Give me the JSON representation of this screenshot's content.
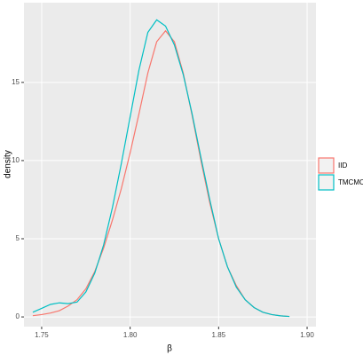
{
  "chart_data": {
    "type": "line",
    "x_label": "β",
    "y_label": "density",
    "x": [
      1.745,
      1.75,
      1.755,
      1.76,
      1.765,
      1.77,
      1.775,
      1.78,
      1.785,
      1.79,
      1.795,
      1.8,
      1.805,
      1.81,
      1.815,
      1.82,
      1.825,
      1.83,
      1.835,
      1.84,
      1.845,
      1.85,
      1.855,
      1.86,
      1.865,
      1.87,
      1.875,
      1.88,
      1.885,
      1.89
    ],
    "series": [
      {
        "name": "IID",
        "color": "#F8766D",
        "values": [
          0.08,
          0.15,
          0.25,
          0.4,
          0.7,
          1.1,
          1.8,
          2.9,
          4.4,
          6.2,
          8.2,
          10.5,
          13.0,
          15.6,
          17.6,
          18.3,
          17.6,
          15.6,
          12.9,
          10.0,
          7.3,
          5.0,
          3.2,
          2.0,
          1.1,
          0.6,
          0.3,
          0.15,
          0.07,
          0.03
        ]
      },
      {
        "name": "TMCMC",
        "color": "#00BFC4",
        "values": [
          0.3,
          0.55,
          0.8,
          0.9,
          0.85,
          0.95,
          1.6,
          2.8,
          4.6,
          7.0,
          9.8,
          12.8,
          15.8,
          18.2,
          19.0,
          18.6,
          17.4,
          15.5,
          13.0,
          10.2,
          7.5,
          5.0,
          3.2,
          1.9,
          1.1,
          0.6,
          0.3,
          0.15,
          0.07,
          0.03
        ]
      }
    ],
    "xlim": [
      1.74,
      1.905
    ],
    "xticks": [
      1.75,
      {
        "value": 1.8,
        "label": "1.80"
      },
      1.85,
      {
        "value": 1.9,
        "label": "1.90"
      }
    ],
    "ylim": [
      -0.62,
      20.1
    ],
    "yticks": [
      0,
      5,
      10,
      15
    ],
    "grid": true,
    "legend": "right"
  }
}
